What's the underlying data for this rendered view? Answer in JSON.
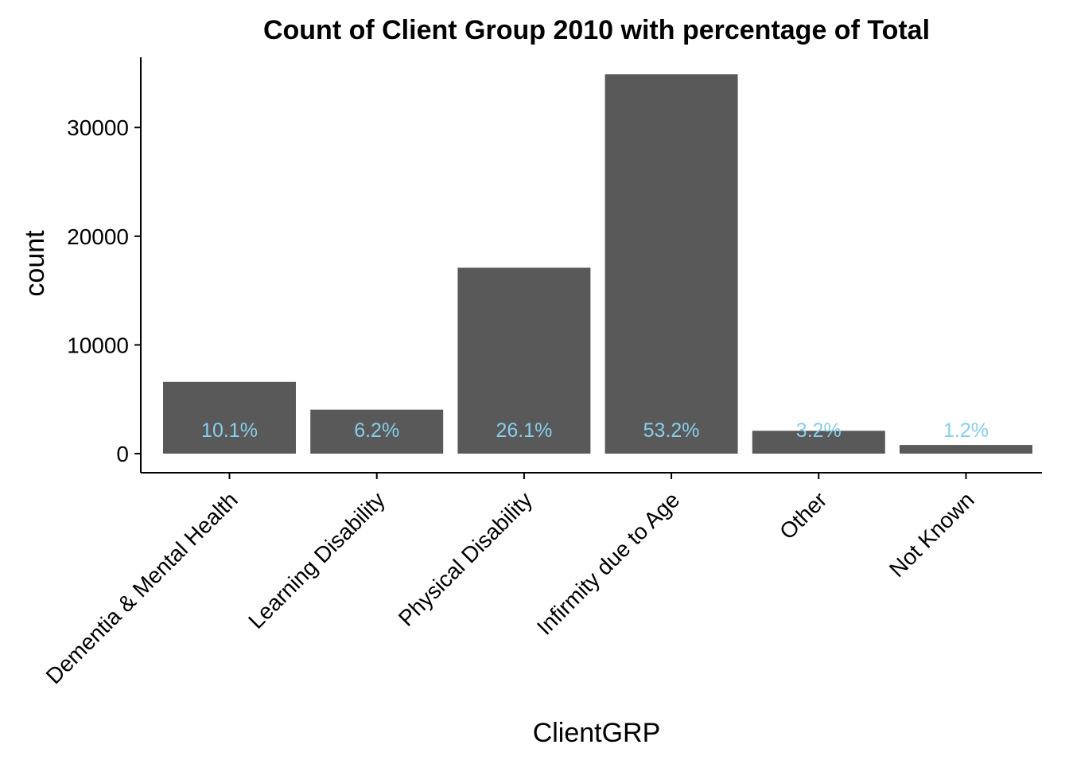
{
  "chart_data": {
    "type": "bar",
    "title": "Count of Client Group 2010 with percentage of Total",
    "xlabel": "ClientGRP",
    "ylabel": "count",
    "categories": [
      "Dementia & Mental Health",
      "Learning Disability",
      "Physical Disability",
      "Infirmity due to Age",
      "Other",
      "Not Known"
    ],
    "values": [
      6600,
      4050,
      17100,
      34900,
      2100,
      800
    ],
    "data_labels": [
      "10.1%",
      "6.2%",
      "26.1%",
      "53.2%",
      "3.2%",
      "1.2%"
    ],
    "yticks": [
      0,
      10000,
      20000,
      30000
    ],
    "ytick_labels": [
      "0",
      "10000",
      "20000",
      "30000"
    ],
    "ylim": [
      0,
      36600
    ],
    "grid": false,
    "colors": {
      "bar": "#595959",
      "data_label": "#87ceeb",
      "axis": "#000000"
    }
  }
}
